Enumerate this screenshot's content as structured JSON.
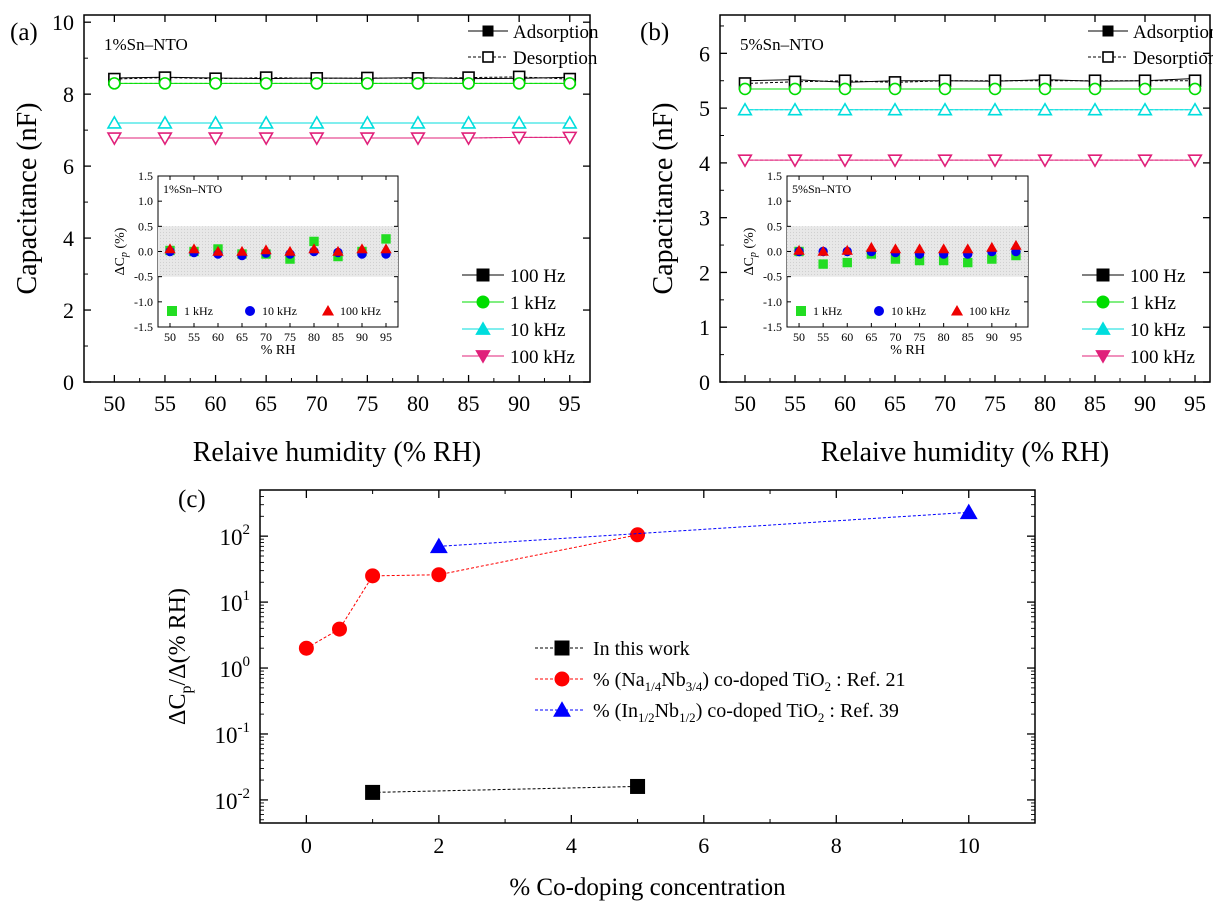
{
  "chart_data": [
    {
      "panel": "(a)",
      "type": "scatter",
      "annotation": "1%Sn–NTO",
      "xlabel": "Relaive humidity (% RH)",
      "ylabel": "Capacitance (nF)",
      "xlim": [
        47,
        97
      ],
      "ylim": [
        0,
        10.2
      ],
      "x_ticks": [
        50,
        55,
        60,
        65,
        70,
        75,
        80,
        85,
        90,
        95
      ],
      "y_ticks": [
        0,
        2,
        4,
        6,
        8,
        10
      ],
      "grid": false,
      "legend_position": "bottom-right",
      "mode_legend": [
        "Adsorption",
        "Desorption"
      ],
      "x": [
        50,
        55,
        60,
        65,
        70,
        75,
        80,
        85,
        90,
        95
      ],
      "series": [
        {
          "name": "100 Hz",
          "color": "#000000",
          "marker": "square",
          "adsorption": [
            8.45,
            8.47,
            8.45,
            8.43,
            8.45,
            8.44,
            8.46,
            8.43,
            8.44,
            8.47
          ],
          "desorption": [
            8.42,
            8.46,
            8.43,
            8.46,
            8.44,
            8.45,
            8.44,
            8.46,
            8.48,
            8.42
          ]
        },
        {
          "name": "1 kHz",
          "color": "#00dd00",
          "marker": "circle",
          "adsorption": [
            8.3,
            8.3,
            8.3,
            8.3,
            8.3,
            8.3,
            8.3,
            8.3,
            8.3,
            8.3
          ],
          "desorption": [
            8.3,
            8.3,
            8.3,
            8.3,
            8.3,
            8.3,
            8.3,
            8.3,
            8.3,
            8.3
          ]
        },
        {
          "name": "10 kHz",
          "color": "#00dddd",
          "marker": "triangle-up",
          "adsorption": [
            7.2,
            7.2,
            7.2,
            7.2,
            7.2,
            7.2,
            7.2,
            7.2,
            7.2,
            7.2
          ],
          "desorption": [
            7.2,
            7.2,
            7.2,
            7.2,
            7.2,
            7.2,
            7.2,
            7.2,
            7.2,
            7.2
          ]
        },
        {
          "name": "100 kHz",
          "color": "#e0207a",
          "marker": "triangle-down",
          "adsorption": [
            6.78,
            6.78,
            6.78,
            6.78,
            6.78,
            6.78,
            6.78,
            6.78,
            6.8,
            6.8
          ],
          "desorption": [
            6.78,
            6.78,
            6.78,
            6.78,
            6.78,
            6.78,
            6.78,
            6.78,
            6.8,
            6.8
          ]
        }
      ],
      "inset": {
        "annotation": "1%Sn–NTO",
        "xlabel": "% RH",
        "ylabel": "ΔC",
        "ylabel_sub": "p",
        "ylabel_tail": " (%)",
        "xlim": [
          47.5,
          97.5
        ],
        "ylim": [
          -1.5,
          1.5
        ],
        "x_ticks": [
          50,
          55,
          60,
          65,
          70,
          75,
          80,
          85,
          90,
          95
        ],
        "y_ticks": [
          -1.5,
          -1.0,
          -0.5,
          0.0,
          0.5,
          1.0,
          1.5
        ],
        "y_tick_labels": [
          "-1.5",
          "-1.0",
          "-0.5",
          "0.0",
          "0.5",
          "1.0",
          "1.5"
        ],
        "band": [
          -0.5,
          0.5
        ],
        "x": [
          50,
          55,
          60,
          65,
          70,
          75,
          80,
          85,
          90,
          95
        ],
        "series": [
          {
            "name": "1 kHz",
            "color": "#22dd22",
            "marker": "square",
            "values": [
              0.02,
              0.0,
              0.05,
              -0.05,
              -0.05,
              -0.15,
              0.2,
              -0.1,
              0.0,
              0.25
            ]
          },
          {
            "name": "10 kHz",
            "color": "#0000ee",
            "marker": "circle",
            "values": [
              0.0,
              -0.02,
              -0.05,
              -0.08,
              -0.03,
              -0.05,
              0.0,
              -0.02,
              -0.05,
              -0.05
            ]
          },
          {
            "name": "100 kHz",
            "color": "#ee0000",
            "marker": "triangle-up",
            "values": [
              0.05,
              0.05,
              0.0,
              0.0,
              0.03,
              0.0,
              0.05,
              0.0,
              0.05,
              0.05
            ]
          }
        ]
      }
    },
    {
      "panel": "(b)",
      "type": "scatter",
      "annotation": "5%Sn–NTO",
      "xlabel": "Relaive humidity (% RH)",
      "ylabel": "Capacitance (nF)",
      "xlim": [
        47.5,
        96.5
      ],
      "ylim": [
        0,
        6.7
      ],
      "x_ticks": [
        50,
        55,
        60,
        65,
        70,
        75,
        80,
        85,
        90,
        95
      ],
      "y_ticks": [
        0,
        1,
        2,
        3,
        4,
        5,
        6
      ],
      "grid": false,
      "legend_position": "bottom-right",
      "mode_legend": [
        "Adsorption",
        "Desorption"
      ],
      "x": [
        50,
        55,
        60,
        65,
        70,
        75,
        80,
        85,
        90,
        95
      ],
      "series": [
        {
          "name": "100 Hz",
          "color": "#000000",
          "marker": "square",
          "adsorption": [
            5.5,
            5.52,
            5.47,
            5.5,
            5.5,
            5.49,
            5.52,
            5.49,
            5.5,
            5.54
          ],
          "desorption": [
            5.45,
            5.48,
            5.5,
            5.47,
            5.5,
            5.5,
            5.5,
            5.5,
            5.5,
            5.5
          ]
        },
        {
          "name": "1 kHz",
          "color": "#00dd00",
          "marker": "circle",
          "adsorption": [
            5.35,
            5.35,
            5.35,
            5.35,
            5.35,
            5.35,
            5.35,
            5.35,
            5.35,
            5.35
          ],
          "desorption": [
            5.35,
            5.35,
            5.35,
            5.35,
            5.35,
            5.35,
            5.35,
            5.35,
            5.35,
            5.35
          ]
        },
        {
          "name": "10 kHz",
          "color": "#00dddd",
          "marker": "triangle-up",
          "adsorption": [
            4.97,
            4.97,
            4.97,
            4.97,
            4.97,
            4.97,
            4.97,
            4.97,
            4.97,
            4.97
          ],
          "desorption": [
            4.97,
            4.97,
            4.97,
            4.97,
            4.97,
            4.97,
            4.97,
            4.97,
            4.97,
            4.97
          ]
        },
        {
          "name": "100 kHz",
          "color": "#e0207a",
          "marker": "triangle-down",
          "adsorption": [
            4.05,
            4.05,
            4.05,
            4.05,
            4.05,
            4.05,
            4.05,
            4.05,
            4.05,
            4.05
          ],
          "desorption": [
            4.05,
            4.05,
            4.05,
            4.05,
            4.05,
            4.05,
            4.05,
            4.05,
            4.05,
            4.05
          ]
        }
      ],
      "inset": {
        "annotation": "5%Sn–NTO",
        "xlabel": "% RH",
        "ylabel": "ΔC",
        "ylabel_sub": "p",
        "ylabel_tail": " (%)",
        "xlim": [
          47.5,
          97.5
        ],
        "ylim": [
          -1.5,
          1.5
        ],
        "x_ticks": [
          50,
          55,
          60,
          65,
          70,
          75,
          80,
          85,
          90,
          95
        ],
        "y_ticks": [
          -1.5,
          -1.0,
          -0.5,
          0.0,
          0.5,
          1.0,
          1.5
        ],
        "y_tick_labels": [
          "-1.5",
          "-1.0",
          "-0.5",
          "0.0",
          "0.5",
          "1.0",
          "1.5"
        ],
        "band": [
          -0.5,
          0.5
        ],
        "x": [
          50,
          55,
          60,
          65,
          70,
          75,
          80,
          85,
          90,
          95
        ],
        "series": [
          {
            "name": "1 kHz",
            "color": "#22dd22",
            "marker": "square",
            "values": [
              0.0,
              -0.25,
              -0.22,
              -0.05,
              -0.15,
              -0.18,
              -0.18,
              -0.22,
              -0.15,
              -0.08
            ]
          },
          {
            "name": "10 kHz",
            "color": "#0000ee",
            "marker": "circle",
            "values": [
              0.0,
              0.0,
              0.0,
              0.0,
              -0.02,
              -0.05,
              -0.05,
              -0.05,
              0.0,
              0.0
            ]
          },
          {
            "name": "100 kHz",
            "color": "#ee0000",
            "marker": "triangle-up",
            "values": [
              0.02,
              0.0,
              0.02,
              0.08,
              0.05,
              0.05,
              0.05,
              0.05,
              0.08,
              0.12
            ]
          }
        ]
      }
    },
    {
      "panel": "(c)",
      "type": "line",
      "xlabel": "% Co-doping concentration",
      "ylabel": "ΔC",
      "ylabel_sub": "p",
      "ylabel_tail": "/Δ(% RH)",
      "xlim": [
        -0.7,
        11.0
      ],
      "ylim_log10": [
        -2.35,
        2.7
      ],
      "y_scale": "log",
      "x_ticks": [
        0,
        2,
        4,
        6,
        8,
        10
      ],
      "y_tick_exponents": [
        -2,
        -1,
        0,
        1,
        2
      ],
      "grid": false,
      "legend_position": "center-right",
      "series": [
        {
          "name": "In this work",
          "color": "#000000",
          "marker": "square",
          "points": [
            [
              1,
              0.013
            ],
            [
              5,
              0.016
            ]
          ]
        },
        {
          "name": "% (Na1/4Nb3/4) co-doped TiO2 : Ref. 21",
          "color": "#ff0000",
          "marker": "circle",
          "points": [
            [
              0,
              2.0
            ],
            [
              0.5,
              3.9
            ],
            [
              1,
              25
            ],
            [
              2,
              26
            ],
            [
              5,
              105
            ]
          ]
        },
        {
          "name": "% (In1/2Nb1/2) co-doped TiO2 : Ref. 39",
          "color": "#0000ff",
          "marker": "triangle-up",
          "points": [
            [
              2,
              70
            ],
            [
              10,
              230
            ]
          ]
        }
      ],
      "legend_labels": [
        {
          "parts": [
            [
              "In this work",
              ""
            ]
          ]
        },
        {
          "parts": [
            [
              "% (Na",
              ""
            ],
            [
              "1/4",
              "sub"
            ],
            [
              "Nb",
              ""
            ],
            [
              "3/4",
              "sub"
            ],
            [
              ") co-doped TiO",
              ""
            ],
            [
              "2",
              "sub"
            ],
            [
              " : Ref. 21",
              ""
            ]
          ]
        },
        {
          "parts": [
            [
              "% (In",
              ""
            ],
            [
              "1/2",
              "sub"
            ],
            [
              "Nb",
              ""
            ],
            [
              "1/2",
              "sub"
            ],
            [
              ") co-doped TiO",
              ""
            ],
            [
              "2",
              "sub"
            ],
            [
              " : Ref. 39",
              ""
            ]
          ]
        }
      ]
    }
  ]
}
